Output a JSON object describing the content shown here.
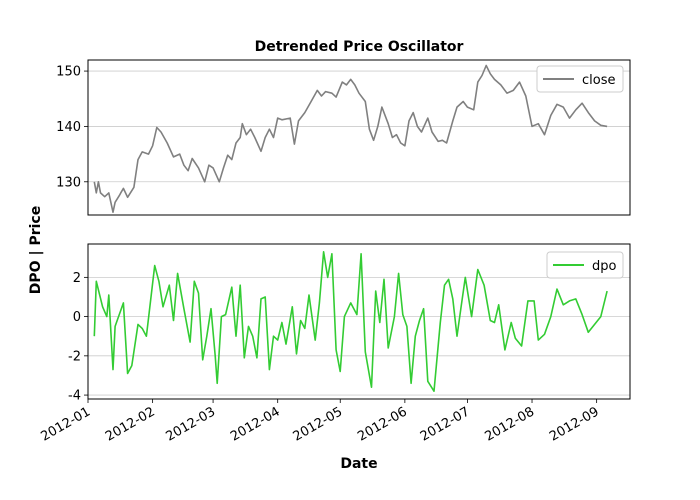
{
  "chart_data": [
    {
      "type": "line",
      "title": "Detrended Price Oscillator",
      "legend": "top-right",
      "grid": "y",
      "xlim": [
        "2012-01-01",
        "2012-09-17"
      ],
      "ylim": [
        124,
        152
      ],
      "yticks": [
        130,
        140,
        150
      ],
      "series": [
        {
          "name": "close",
          "color": "#808080",
          "x": [
            "2012-01-04",
            "2012-01-05",
            "2012-01-06",
            "2012-01-07",
            "2012-01-09",
            "2012-01-11",
            "2012-01-13",
            "2012-01-14",
            "2012-01-16",
            "2012-01-17",
            "2012-01-18",
            "2012-01-20",
            "2012-01-23",
            "2012-01-25",
            "2012-01-27",
            "2012-01-30",
            "2012-02-01",
            "2012-02-03",
            "2012-02-05",
            "2012-02-08",
            "2012-02-11",
            "2012-02-14",
            "2012-02-16",
            "2012-02-18",
            "2012-02-20",
            "2012-02-23",
            "2012-02-26",
            "2012-02-28",
            "2012-03-01",
            "2012-03-04",
            "2012-03-06",
            "2012-03-08",
            "2012-03-10",
            "2012-03-12",
            "2012-03-14",
            "2012-03-15",
            "2012-03-17",
            "2012-03-19",
            "2012-03-21",
            "2012-03-24",
            "2012-03-26",
            "2012-03-28",
            "2012-03-30",
            "2012-04-01",
            "2012-04-03",
            "2012-04-07",
            "2012-04-09",
            "2012-04-11",
            "2012-04-14",
            "2012-04-17",
            "2012-04-20",
            "2012-04-22",
            "2012-04-24",
            "2012-04-27",
            "2012-04-29",
            "2012-05-02",
            "2012-05-04",
            "2012-05-06",
            "2012-05-08",
            "2012-05-10",
            "2012-05-13",
            "2012-05-15",
            "2012-05-17",
            "2012-05-19",
            "2012-05-21",
            "2012-05-24",
            "2012-05-26",
            "2012-05-28",
            "2012-05-30",
            "2012-06-01",
            "2012-06-03",
            "2012-06-05",
            "2012-06-07",
            "2012-06-09",
            "2012-06-12",
            "2012-06-14",
            "2012-06-17",
            "2012-06-19",
            "2012-06-21",
            "2012-06-24",
            "2012-06-26",
            "2012-06-29",
            "2012-07-01",
            "2012-07-04",
            "2012-07-06",
            "2012-07-08",
            "2012-07-10",
            "2012-07-12",
            "2012-07-14",
            "2012-07-17",
            "2012-07-20",
            "2012-07-23",
            "2012-07-26",
            "2012-07-29",
            "2012-08-01",
            "2012-08-04",
            "2012-08-07",
            "2012-08-10",
            "2012-08-13",
            "2012-08-16",
            "2012-08-19",
            "2012-08-22",
            "2012-08-25",
            "2012-08-28",
            "2012-08-31",
            "2012-09-03",
            "2012-09-06"
          ],
          "values": [
            130.0,
            128.0,
            130.0,
            128.0,
            127.3,
            128.0,
            124.5,
            126.3,
            127.5,
            128.2,
            128.8,
            127.2,
            129.0,
            134.0,
            135.4,
            135.0,
            136.5,
            139.8,
            139.0,
            137.0,
            134.5,
            135.0,
            133.0,
            132.0,
            134.2,
            132.5,
            130.0,
            133.0,
            132.5,
            130.0,
            132.5,
            134.8,
            134.0,
            137.0,
            138.0,
            140.5,
            138.5,
            139.5,
            138.0,
            135.5,
            138.0,
            139.5,
            138.0,
            141.5,
            141.2,
            141.5,
            136.8,
            141.0,
            142.5,
            144.5,
            146.5,
            145.5,
            146.3,
            146.0,
            145.3,
            148.0,
            147.5,
            148.5,
            147.5,
            146.0,
            144.5,
            139.5,
            137.5,
            140.0,
            143.5,
            140.5,
            138.0,
            138.5,
            137.0,
            136.5,
            141.0,
            142.5,
            140.0,
            139.0,
            141.5,
            139.0,
            137.3,
            137.5,
            137.0,
            141.0,
            143.5,
            144.5,
            143.5,
            143.0,
            148.0,
            149.2,
            151.0,
            149.5,
            148.5,
            147.5,
            146.0,
            146.5,
            148.0,
            145.5,
            140.0,
            140.5,
            138.5,
            142.0,
            144.0,
            143.5,
            141.5,
            143.0,
            144.2,
            142.5,
            141.0,
            140.2,
            140.0
          ]
        }
      ]
    },
    {
      "type": "line",
      "legend": "top-right",
      "grid": "y",
      "xlim": [
        "2012-01-01",
        "2012-09-17"
      ],
      "ylim": [
        -4.2,
        3.7
      ],
      "yticks": [
        -4,
        -2,
        0,
        2
      ],
      "xticks": [
        "2012-01",
        "2012-02",
        "2012-03",
        "2012-04",
        "2012-05",
        "2012-06",
        "2012-07",
        "2012-08",
        "2012-09"
      ],
      "xlabel": "Date",
      "series": [
        {
          "name": "dpo",
          "color": "#33cc33",
          "x": [
            "2012-01-04",
            "2012-01-05",
            "2012-01-08",
            "2012-01-10",
            "2012-01-11",
            "2012-01-13",
            "2012-01-14",
            "2012-01-18",
            "2012-01-20",
            "2012-01-22",
            "2012-01-25",
            "2012-01-27",
            "2012-01-29",
            "2012-02-02",
            "2012-02-04",
            "2012-02-06",
            "2012-02-09",
            "2012-02-11",
            "2012-02-13",
            "2012-02-16",
            "2012-02-19",
            "2012-02-21",
            "2012-02-23",
            "2012-02-25",
            "2012-02-27",
            "2012-02-29",
            "2012-03-02",
            "2012-03-03",
            "2012-03-05",
            "2012-03-07",
            "2012-03-10",
            "2012-03-12",
            "2012-03-14",
            "2012-03-16",
            "2012-03-18",
            "2012-03-20",
            "2012-03-22",
            "2012-03-24",
            "2012-03-26",
            "2012-03-28",
            "2012-03-30",
            "2012-04-01",
            "2012-04-03",
            "2012-04-05",
            "2012-04-08",
            "2012-04-10",
            "2012-04-12",
            "2012-04-14",
            "2012-04-16",
            "2012-04-19",
            "2012-04-21",
            "2012-04-23",
            "2012-04-25",
            "2012-04-27",
            "2012-04-29",
            "2012-05-01",
            "2012-05-03",
            "2012-05-06",
            "2012-05-09",
            "2012-05-11",
            "2012-05-13",
            "2012-05-16",
            "2012-05-18",
            "2012-05-20",
            "2012-05-22",
            "2012-05-24",
            "2012-05-27",
            "2012-05-29",
            "2012-05-31",
            "2012-06-02",
            "2012-06-04",
            "2012-06-06",
            "2012-06-08",
            "2012-06-10",
            "2012-06-12",
            "2012-06-15",
            "2012-06-18",
            "2012-06-20",
            "2012-06-22",
            "2012-06-24",
            "2012-06-26",
            "2012-06-28",
            "2012-06-30",
            "2012-07-03",
            "2012-07-06",
            "2012-07-09",
            "2012-07-12",
            "2012-07-14",
            "2012-07-16",
            "2012-07-19",
            "2012-07-22",
            "2012-07-24",
            "2012-07-27",
            "2012-07-30",
            "2012-08-02",
            "2012-08-04",
            "2012-08-07",
            "2012-08-10",
            "2012-08-13",
            "2012-08-16",
            "2012-08-19",
            "2012-08-22",
            "2012-08-25",
            "2012-08-28",
            "2012-08-31",
            "2012-09-03",
            "2012-09-06"
          ],
          "values": [
            -1.0,
            1.8,
            0.5,
            0.0,
            1.1,
            -2.7,
            -0.5,
            0.7,
            -2.9,
            -2.5,
            -0.4,
            -0.6,
            -1.0,
            2.6,
            1.8,
            0.5,
            1.6,
            -0.2,
            2.2,
            0.4,
            -1.3,
            1.8,
            1.2,
            -2.2,
            -1.0,
            0.4,
            -2.0,
            -3.4,
            0.0,
            0.1,
            1.5,
            -1.0,
            1.6,
            -2.1,
            -0.5,
            -1.0,
            -2.1,
            0.9,
            1.0,
            -2.7,
            -1.0,
            -1.2,
            -0.3,
            -1.4,
            0.5,
            -1.9,
            -0.2,
            -0.6,
            1.1,
            -1.2,
            0.7,
            3.3,
            2.0,
            3.2,
            -1.7,
            -2.8,
            0.0,
            0.7,
            0.1,
            3.2,
            -1.8,
            -3.6,
            1.3,
            -0.3,
            1.9,
            -1.6,
            0.0,
            2.2,
            0.1,
            -0.5,
            -3.4,
            -1.0,
            -0.2,
            0.4,
            -3.3,
            -3.8,
            -0.3,
            1.6,
            1.9,
            0.9,
            -1.0,
            0.5,
            2.0,
            0.0,
            2.4,
            1.6,
            -0.2,
            -0.3,
            0.6,
            -1.7,
            -0.3,
            -1.1,
            -1.5,
            0.8,
            0.8,
            -1.2,
            -0.9,
            0.0,
            1.4,
            0.6,
            0.8,
            0.9,
            0.1,
            -0.8,
            -0.4,
            0.0,
            1.3
          ]
        }
      ]
    }
  ],
  "ylabel": "DPO | Price"
}
